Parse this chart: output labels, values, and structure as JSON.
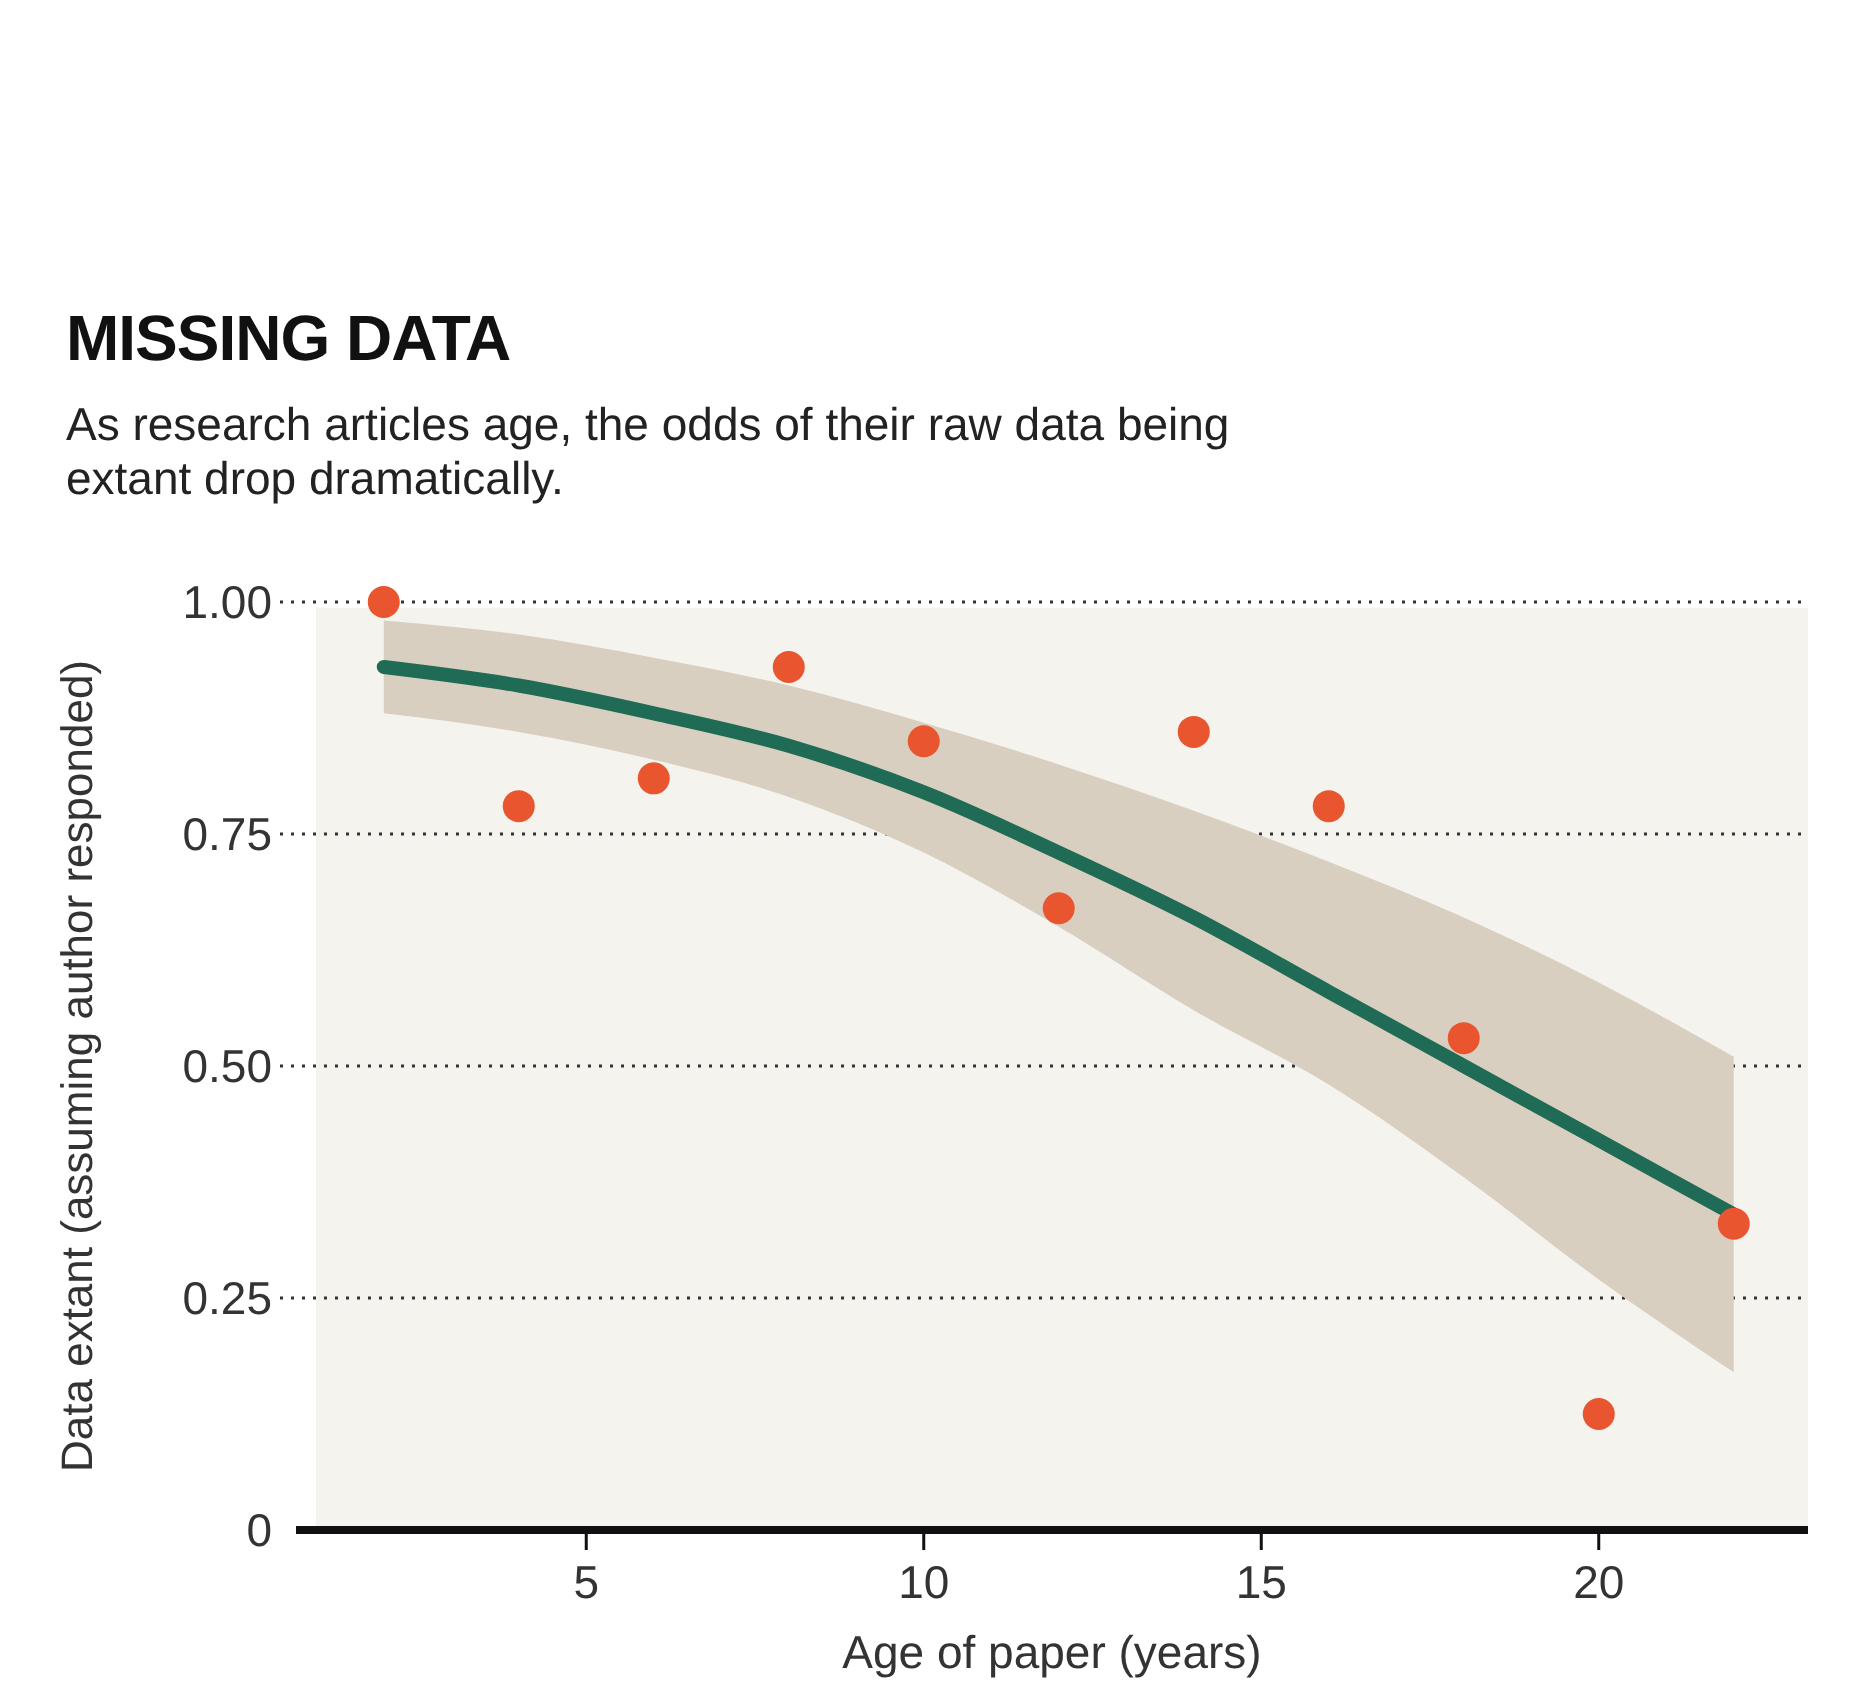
{
  "chart_data": {
    "type": "scatter",
    "title": "MISSING DATA",
    "subtitle": "As research articles age, the odds of their raw data being extant drop dramatically.",
    "xlabel": "Age of paper (years)",
    "ylabel": "Data extant (assuming author responded)",
    "xlim": [
      0.7,
      23.1
    ],
    "xticks": [
      5,
      10,
      15,
      20
    ],
    "ylim": [
      0,
      1
    ],
    "yticks": [
      {
        "value": 0,
        "label": "0"
      },
      {
        "value": 0.25,
        "label": "0.25"
      },
      {
        "value": 0.5,
        "label": "0.50"
      },
      {
        "value": 0.75,
        "label": "0.75"
      },
      {
        "value": 1,
        "label": "1.00"
      }
    ],
    "grid": "y",
    "series": [
      {
        "type": "line",
        "color": "#1f6b55",
        "x": [
          2,
          4,
          6,
          8,
          10,
          12,
          14,
          16,
          18,
          20,
          22
        ],
        "values": [
          0.93,
          0.91,
          0.88,
          0.845,
          0.795,
          0.73,
          0.66,
          0.58,
          0.5,
          0.42,
          0.34
        ],
        "upper": [
          0.98,
          0.965,
          0.94,
          0.91,
          0.87,
          0.825,
          0.775,
          0.72,
          0.66,
          0.59,
          0.51
        ],
        "lower": [
          0.88,
          0.86,
          0.83,
          0.79,
          0.73,
          0.65,
          0.56,
          0.48,
          0.38,
          0.27,
          0.17
        ]
      },
      {
        "marker": "circle",
        "color": "#e8552e",
        "x": [
          2,
          4,
          6,
          8,
          10,
          12,
          14,
          16,
          18,
          20,
          22
        ],
        "values": [
          1.0,
          0.78,
          0.81,
          0.93,
          0.85,
          0.67,
          0.86,
          0.78,
          0.53,
          0.125,
          0.33
        ]
      }
    ]
  }
}
